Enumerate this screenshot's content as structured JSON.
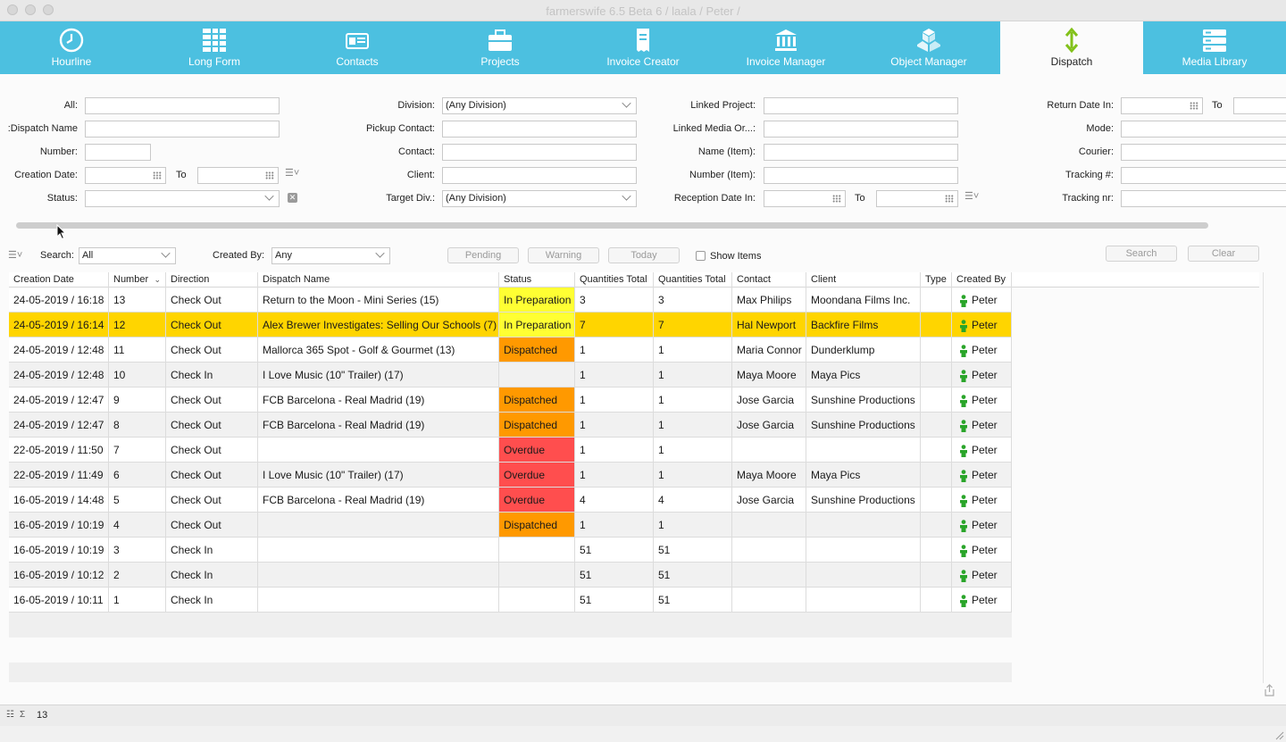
{
  "window": {
    "title": "farmerswife 6.5 Beta 6 / laala / Peter /"
  },
  "modules": [
    {
      "label": "Hourline",
      "icon": "clock-icon",
      "active": false
    },
    {
      "label": "Long Form",
      "icon": "long-form-icon",
      "active": false
    },
    {
      "label": "Contacts",
      "icon": "contacts-icon",
      "active": false
    },
    {
      "label": "Projects",
      "icon": "projects-icon",
      "active": false
    },
    {
      "label": "Invoice Creator",
      "icon": "invoice-creator-icon",
      "active": false
    },
    {
      "label": "Invoice Manager",
      "icon": "invoice-manager-icon",
      "active": false
    },
    {
      "label": "Object Manager",
      "icon": "object-manager-icon",
      "active": false
    },
    {
      "label": "Dispatch",
      "icon": "dispatch-icon",
      "active": true
    },
    {
      "label": "Media Library",
      "icon": "media-library-icon",
      "active": false
    }
  ],
  "filters": {
    "all_label": "All:",
    "dispatch_name_label": "Dispatch Name:",
    "number_label": "Number:",
    "creation_date_label": "Creation Date:",
    "to_label": "To",
    "status_label": "Status:",
    "division_label": "Division:",
    "division_value": "(Any Division)",
    "pickup_contact_label": "Pickup Contact:",
    "contact_label": "Contact:",
    "client_label": "Client:",
    "target_div_label": "Target Div.:",
    "target_div_value": "(Any Division)",
    "linked_project_label": "Linked Project:",
    "linked_media_label": "Linked Media Or...:",
    "name_item_label": "Name (Item):",
    "number_item_label": "Number (Item):",
    "reception_date_label": "Reception Date In:",
    "return_date_label": "Return Date In:",
    "mode_label": "Mode:",
    "courier_label": "Courier:",
    "tracking_hash_label": "Tracking #:",
    "tracking_nr_label": "Tracking nr:"
  },
  "searchbar": {
    "search_label": "Search:",
    "search_value": "All",
    "created_by_label": "Created By:",
    "created_by_value": "Any",
    "pending_label": "Pending",
    "warning_label": "Warning",
    "today_label": "Today",
    "show_items_label": "Show Items",
    "search_button": "Search",
    "clear_button": "Clear"
  },
  "table": {
    "columns": [
      "Creation Date",
      "Number",
      "Direction",
      "Dispatch Name",
      "Status",
      "Quantities Total",
      "Quantities Total",
      "Contact",
      "Client",
      "Type",
      "Created By"
    ],
    "rows": [
      {
        "date": "24-05-2019 / 16:18",
        "number": "13",
        "direction": "Check Out",
        "name": "Return to the Moon - Mini Series (15)",
        "status": "In Preparation",
        "q1": "3",
        "q2": "3",
        "contact": "Max Philips",
        "client": "Moondana Films Inc.",
        "type": "",
        "created_by": "Peter"
      },
      {
        "date": "24-05-2019 / 16:14",
        "number": "12",
        "direction": "Check Out",
        "name": "Alex Brewer Investigates: Selling Our Schools (7)",
        "status": "In Preparation",
        "q1": "7",
        "q2": "7",
        "contact": "Hal Newport",
        "client": "Backfire Films",
        "type": "",
        "created_by": "Peter"
      },
      {
        "date": "24-05-2019 / 12:48",
        "number": "11",
        "direction": "Check Out",
        "name": "Mallorca 365 Spot - Golf & Gourmet (13)",
        "status": "Dispatched",
        "q1": "1",
        "q2": "1",
        "contact": "Maria Connor",
        "client": "Dunderklump",
        "type": "",
        "created_by": "Peter"
      },
      {
        "date": "24-05-2019 / 12:48",
        "number": "10",
        "direction": "Check In",
        "name": "I Love Music (10\" Trailer) (17)",
        "status": "",
        "q1": "1",
        "q2": "1",
        "contact": "Maya Moore",
        "client": "Maya Pics",
        "type": "",
        "created_by": "Peter"
      },
      {
        "date": "24-05-2019 / 12:47",
        "number": "9",
        "direction": "Check Out",
        "name": "FCB Barcelona - Real Madrid (19)",
        "status": "Dispatched",
        "q1": "1",
        "q2": "1",
        "contact": "Jose Garcia",
        "client": "Sunshine Productions",
        "type": "",
        "created_by": "Peter"
      },
      {
        "date": "24-05-2019 / 12:47",
        "number": "8",
        "direction": "Check Out",
        "name": "FCB Barcelona - Real Madrid (19)",
        "status": "Dispatched",
        "q1": "1",
        "q2": "1",
        "contact": "Jose Garcia",
        "client": "Sunshine Productions",
        "type": "",
        "created_by": "Peter"
      },
      {
        "date": "22-05-2019 / 11:50",
        "number": "7",
        "direction": "Check Out",
        "name": "",
        "status": "Overdue",
        "q1": "1",
        "q2": "1",
        "contact": "",
        "client": "",
        "type": "",
        "created_by": "Peter"
      },
      {
        "date": "22-05-2019 / 11:49",
        "number": "6",
        "direction": "Check Out",
        "name": "I Love Music (10\" Trailer) (17)",
        "status": "Overdue",
        "q1": "1",
        "q2": "1",
        "contact": "Maya Moore",
        "client": "Maya Pics",
        "type": "",
        "created_by": "Peter"
      },
      {
        "date": "16-05-2019 / 14:48",
        "number": "5",
        "direction": "Check Out",
        "name": "FCB Barcelona - Real Madrid (19)",
        "status": "Overdue",
        "q1": "4",
        "q2": "4",
        "contact": "Jose Garcia",
        "client": "Sunshine Productions",
        "type": "",
        "created_by": "Peter"
      },
      {
        "date": "16-05-2019 / 10:19",
        "number": "4",
        "direction": "Check Out",
        "name": "",
        "status": "Dispatched",
        "q1": "1",
        "q2": "1",
        "contact": "",
        "client": "",
        "type": "",
        "created_by": "Peter"
      },
      {
        "date": "16-05-2019 / 10:19",
        "number": "3",
        "direction": "Check In",
        "name": "",
        "status": "",
        "q1": "51",
        "q2": "51",
        "contact": "",
        "client": "",
        "type": "",
        "created_by": "Peter"
      },
      {
        "date": "16-05-2019 / 10:12",
        "number": "2",
        "direction": "Check In",
        "name": "",
        "status": "",
        "q1": "51",
        "q2": "51",
        "contact": "",
        "client": "",
        "type": "",
        "created_by": "Peter"
      },
      {
        "date": "16-05-2019 / 10:11",
        "number": "1",
        "direction": "Check In",
        "name": "",
        "status": "",
        "q1": "51",
        "q2": "51",
        "contact": "",
        "client": "",
        "type": "",
        "created_by": "Peter"
      }
    ],
    "selected_row": 1
  },
  "status_colors": {
    "In Preparation": "#ffff33",
    "Dispatched": "#ff9900",
    "Overdue": "#ff4e4e",
    "selected_row": "#ffd500",
    "accent": "#4cc0e0"
  },
  "statusbar": {
    "count": "13"
  }
}
